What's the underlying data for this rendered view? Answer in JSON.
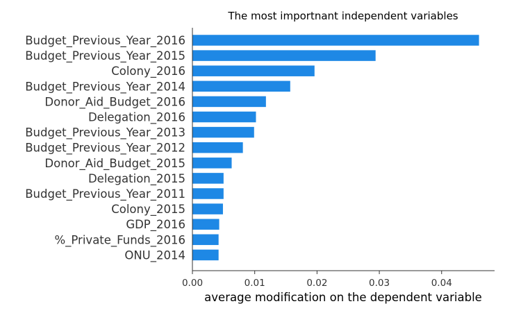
{
  "chart_data": {
    "type": "bar",
    "orientation": "horizontal",
    "title": "The most importnant independent variables",
    "xlabel": "average modification on the dependent variable",
    "ylabel": "",
    "categories": [
      "Budget_Previous_Year_2016",
      "Budget_Previous_Year_2015",
      "Colony_2016",
      "Budget_Previous_Year_2014",
      "Donor_Aid_Budget_2016",
      "Delegation_2016",
      "Budget_Previous_Year_2013",
      "Budget_Previous_Year_2012",
      "Donor_Aid_Budget_2015",
      "Delegation_2015",
      "Budget_Previous_Year_2011",
      "Colony_2015",
      "GDP_2016",
      "%_Private_Funds_2016",
      "ONU_2014"
    ],
    "values": [
      0.046,
      0.0294,
      0.0196,
      0.0157,
      0.0118,
      0.0102,
      0.0099,
      0.0081,
      0.0063,
      0.005,
      0.005,
      0.0049,
      0.0043,
      0.0042,
      0.0042
    ],
    "xlim": [
      0.0,
      0.0485
    ],
    "xticks": [
      0.0,
      0.01,
      0.02,
      0.03,
      0.04
    ],
    "xtick_labels": [
      "0.00",
      "0.01",
      "0.02",
      "0.03",
      "0.04"
    ],
    "grid": false,
    "legend": "none",
    "bar_color": "#1e88e5"
  }
}
